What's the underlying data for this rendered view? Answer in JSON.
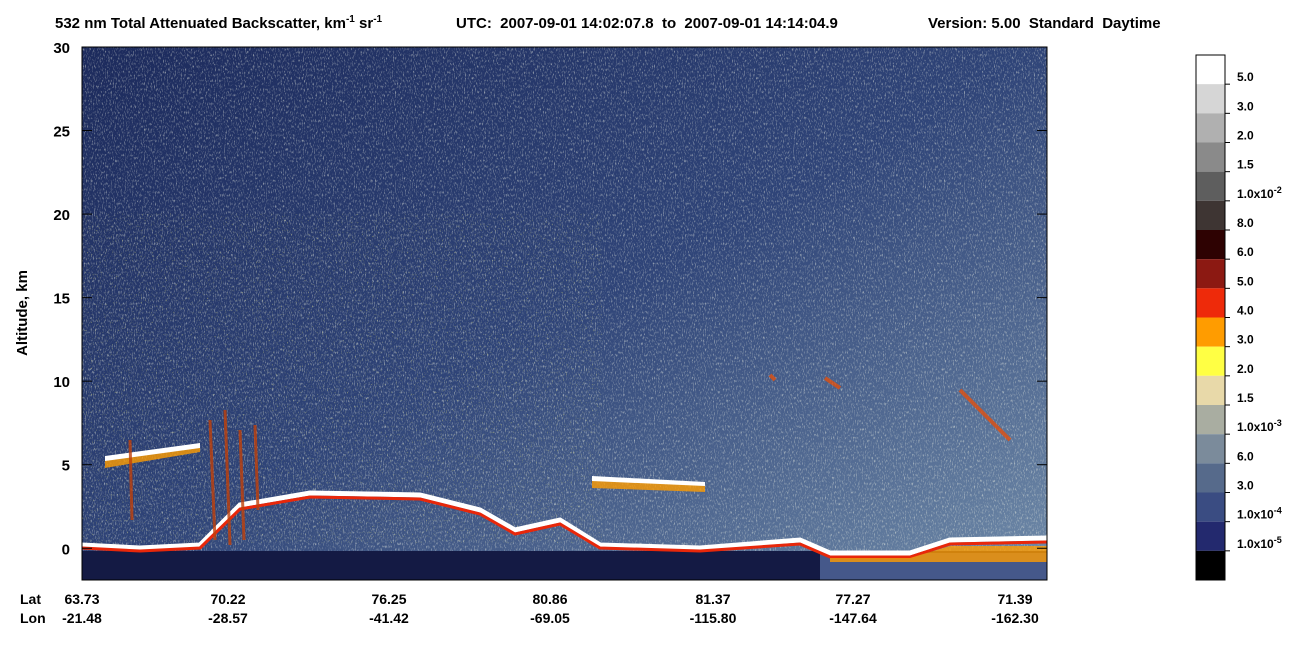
{
  "chart_data": {
    "type": "heatmap",
    "title": {
      "parts": [
        {
          "text": "532 nm Total Attenuated Backscatter, km"
        },
        {
          "sup": "-1"
        },
        {
          "text": " sr"
        },
        {
          "sup": "-1"
        }
      ]
    },
    "utc": "UTC:  2007-09-01 14:02:07.8  to  2007-09-01 14:14:04.9",
    "version": "Version: 5.00  Standard  Daytime",
    "y_label": "Altitude, km",
    "ylim": [
      -1.9,
      30
    ],
    "yticks": [
      0,
      5,
      10,
      15,
      20,
      25,
      30
    ],
    "x_labels": {
      "row_labels": [
        "Lat",
        "Lon"
      ],
      "lat": [
        "63.73",
        "70.22",
        "76.25",
        "80.86",
        "81.37",
        "77.27",
        "71.39"
      ],
      "lon": [
        "-21.48",
        "-28.57",
        "-41.42",
        "-69.05",
        "-115.80",
        "-147.64",
        "-162.30"
      ]
    },
    "colorbar": {
      "colors": [
        "#ffffff",
        "#d6d6d6",
        "#b0b0b0",
        "#8a8a8a",
        "#5e5e5e",
        "#3e3533",
        "#2e0202",
        "#8c1912",
        "#ee2a0a",
        "#ff9c00",
        "#ffff44",
        "#e8d9a9",
        "#a9ada1",
        "#7b8b9b",
        "#566a8b",
        "#3a4c82",
        "#23296e",
        "#000000"
      ],
      "labels": [
        {
          "text": "5.0"
        },
        {
          "text": "3.0"
        },
        {
          "text": "2.0"
        },
        {
          "text": "1.5"
        },
        {
          "text": "1.0x10",
          "sup": "-2"
        },
        {
          "text": "8.0"
        },
        {
          "text": "6.0"
        },
        {
          "text": "5.0"
        },
        {
          "text": "4.0"
        },
        {
          "text": "3.0"
        },
        {
          "text": "2.0"
        },
        {
          "text": "1.5"
        },
        {
          "text": "1.0x10",
          "sup": "-3"
        },
        {
          "text": "6.0"
        },
        {
          "text": "3.0"
        },
        {
          "text": "1.0x10",
          "sup": "-4"
        },
        {
          "text": "1.0x10",
          "sup": "-5"
        }
      ]
    }
  }
}
